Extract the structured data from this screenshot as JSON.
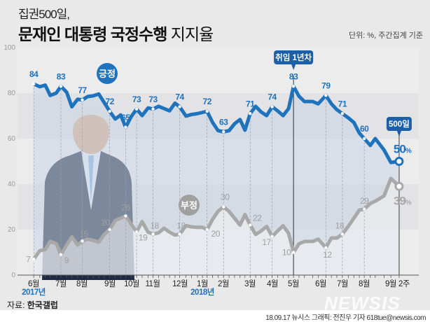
{
  "header": {
    "title_line1": "집권500일,",
    "title_bold": "문재인 대통령 국정수행",
    "title_rest": " 지지율",
    "unit": "단위: %, 주간집계 기준"
  },
  "source": {
    "label": "자료:",
    "name": "한국갤럽"
  },
  "footer": {
    "credit": "18.09.17 뉴시스 그래픽: 전진우 기자 618tue@newsis.com"
  },
  "logo": "NEWSIS",
  "chart_data": {
    "type": "line",
    "ylim": [
      0,
      100
    ],
    "yticks": [
      "0",
      "20",
      "40",
      "60",
      "80",
      "100"
    ],
    "xticks": [
      "6월",
      "7월",
      "8월",
      "9월",
      "10월",
      "11월",
      "12월",
      "1월",
      "2월",
      "3월",
      "4월",
      "5월",
      "6월",
      "7월",
      "8월",
      "9월",
      "2주"
    ],
    "year_labels": [
      "2017년",
      "2018년"
    ],
    "grid": false,
    "colors": {
      "positive": "#1f73bd",
      "negative": "#a8a8a8"
    },
    "annotations": {
      "one_year": "취임 1년차",
      "day500": "500일"
    },
    "series": [
      {
        "name": "긍정",
        "values": [
          84,
          82.8,
          83.5,
          79,
          80,
          83,
          80.4,
          74,
          77.3,
          77,
          78.5,
          78.8,
          79.6,
          75.8,
          72,
          68.6,
          70.4,
          65,
          69.6,
          73,
          70.1,
          73.5,
          73,
          74.2,
          73.2,
          72.2,
          75.6,
          74,
          69.9,
          70.6,
          71,
          71.5,
          72,
          67.1,
          63.5,
          63,
          63.5,
          66.5,
          68.4,
          63.7,
          71,
          74.2,
          71.7,
          70.1,
          74,
          72.2,
          70.1,
          73.2,
          83,
          78.6,
          76.3,
          76.3,
          75.3,
          79,
          75.3,
          72.7,
          71,
          69.1,
          67.1,
          62.4,
          60,
          57,
          60,
          55,
          49.5,
          50
        ],
        "labels": [
          [
            "84",
            0
          ],
          [
            "83",
            5
          ],
          [
            "77",
            9
          ],
          [
            "72",
            14
          ],
          [
            "65",
            17
          ],
          [
            "73",
            19
          ],
          [
            "73",
            22
          ],
          [
            "74",
            27
          ],
          [
            "72",
            32
          ],
          [
            "63",
            35
          ],
          [
            "71",
            40
          ],
          [
            "74",
            44
          ],
          [
            "83",
            48
          ],
          [
            "79",
            53
          ],
          [
            "71",
            56
          ],
          [
            "60",
            60
          ]
        ],
        "last_label": "50",
        "last_unit": "%"
      },
      {
        "name": "부정",
        "values": [
          7,
          10.7,
          11.2,
          14.8,
          13.8,
          9,
          13.2,
          16.8,
          13.2,
          15,
          15.8,
          15.3,
          14.5,
          17.9,
          20,
          24,
          25,
          26,
          22.5,
          19,
          23.5,
          18.9,
          18,
          18.6,
          20.6,
          18.9,
          17.6,
          18,
          21.7,
          21.2,
          21,
          21,
          20,
          24.5,
          28.1,
          30,
          28,
          25,
          22,
          26.6,
          22,
          17.9,
          19.4,
          21.4,
          17,
          19.4,
          21.7,
          18.4,
          10,
          13.8,
          14.8,
          14.8,
          15.8,
          12,
          16.3,
          16.3,
          18,
          21.5,
          25,
          28.6,
          29,
          31.5,
          32.5,
          34.8,
          42.5,
          39
        ],
        "labels": [
          [
            "7",
            0
          ],
          [
            "9",
            5
          ],
          [
            "15",
            9
          ],
          [
            "20",
            14
          ],
          [
            "26",
            17
          ],
          [
            "19",
            19
          ],
          [
            "18",
            22
          ],
          [
            "18",
            27
          ],
          [
            "20",
            32
          ],
          [
            "30",
            35
          ],
          [
            "22",
            40
          ],
          [
            "17",
            44
          ],
          [
            "10",
            48
          ],
          [
            "12",
            53
          ],
          [
            "18",
            56
          ],
          [
            "29",
            60
          ]
        ],
        "last_label": "39",
        "last_unit": "%"
      }
    ]
  }
}
